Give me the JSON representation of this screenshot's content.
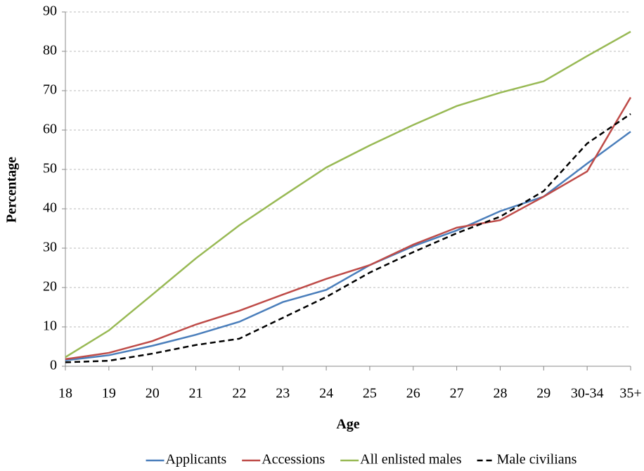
{
  "chart_data": {
    "type": "line",
    "x_label": "Age",
    "y_label": "Percentage",
    "categories": [
      "18",
      "19",
      "20",
      "21",
      "22",
      "23",
      "24",
      "25",
      "26",
      "27",
      "28",
      "29",
      "30-34",
      "35+"
    ],
    "series": [
      {
        "name": "Applicants",
        "color": "#4a7ebb",
        "dashed": false,
        "values": [
          1.5,
          2.8,
          5.2,
          8.0,
          11.3,
          16.3,
          19.4,
          25.7,
          30.5,
          34.5,
          39.4,
          43.1,
          51.5,
          59.6
        ]
      },
      {
        "name": "Accessions",
        "color": "#be4b48",
        "dashed": false,
        "values": [
          1.8,
          3.4,
          6.4,
          10.6,
          14.1,
          18.2,
          22.2,
          25.7,
          30.9,
          35.2,
          37.1,
          43.1,
          49.5,
          68.3
        ]
      },
      {
        "name": "All enlisted males",
        "color": "#98b954",
        "dashed": false,
        "values": [
          2.3,
          9.1,
          18.2,
          27.4,
          35.8,
          43.2,
          50.5,
          56.1,
          61.3,
          66.1,
          69.5,
          72.4,
          78.8,
          85.0
        ]
      },
      {
        "name": "Male civilians",
        "color": "#000000",
        "dashed": true,
        "values": [
          1.0,
          1.4,
          3.2,
          5.4,
          7.0,
          12.3,
          17.6,
          23.8,
          29.0,
          33.8,
          38.0,
          44.5,
          56.6,
          64.1
        ]
      }
    ],
    "ylim": [
      0,
      90
    ],
    "yticks": [
      0,
      10,
      20,
      30,
      40,
      50,
      60,
      70,
      80,
      90
    ],
    "grid": true,
    "legend": "bottom"
  }
}
